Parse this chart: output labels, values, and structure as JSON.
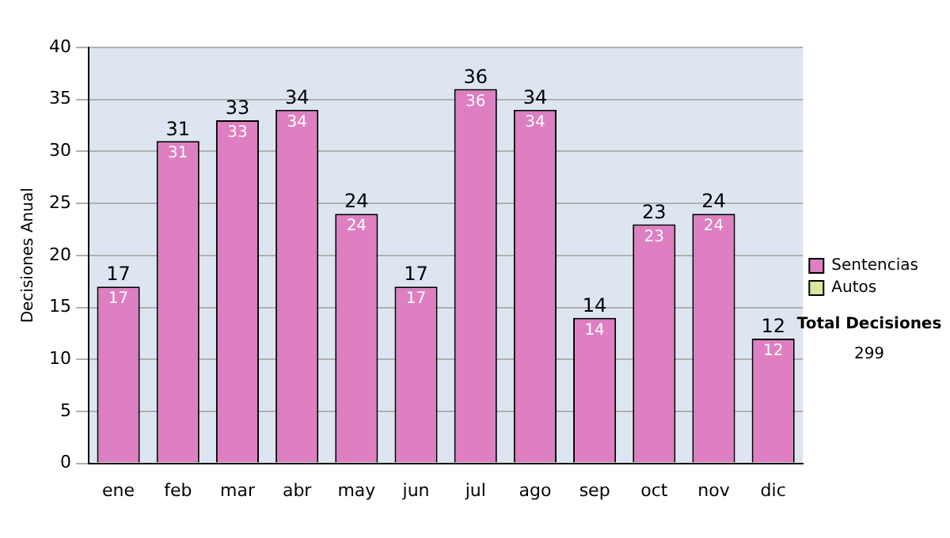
{
  "chart_data": {
    "type": "bar",
    "ylabel": "Decisiones Anual",
    "categories": [
      "ene",
      "feb",
      "mar",
      "abr",
      "may",
      "jun",
      "jul",
      "ago",
      "sep",
      "oct",
      "nov",
      "dic"
    ],
    "series": [
      {
        "name": "Sentencias",
        "color": "#dd7fc0",
        "values": [
          17,
          31,
          33,
          34,
          24,
          17,
          36,
          34,
          14,
          23,
          24,
          12
        ],
        "value_labels": [
          "17",
          "31",
          "33",
          "34",
          "24",
          "17",
          "36",
          "34",
          "14",
          "23",
          "24",
          "12"
        ]
      },
      {
        "name": "Autos",
        "color": "#d8e8a0",
        "values": [
          0,
          0,
          0,
          0,
          0,
          0,
          0,
          0,
          0,
          0,
          0,
          0
        ]
      }
    ],
    "stacked": true,
    "totals": [
      "17",
      "31",
      "33",
      "34",
      "24",
      "17",
      "36",
      "34",
      "14",
      "23",
      "24",
      "12"
    ],
    "ylim": [
      0,
      40
    ],
    "yticks": [
      0,
      5,
      10,
      15,
      20,
      25,
      30,
      35,
      40
    ],
    "grid": "y",
    "legend": "right",
    "annotations": [
      "Total Decisiones",
      "299"
    ]
  }
}
